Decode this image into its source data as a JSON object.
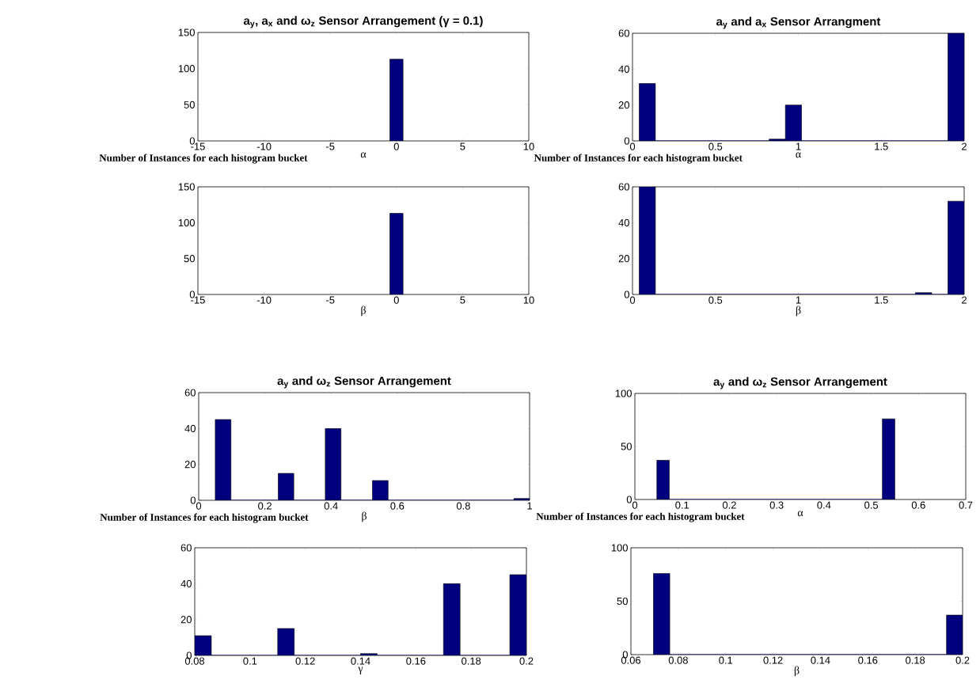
{
  "chart_data": [
    {
      "type": "histogram",
      "title": "a$_{y}$, a$_{x}$ and ω$_{z}$ Sensor Arrangement (γ = 0.1)",
      "xlabel": "α",
      "ylabel": "Number of Instances for each histogram bucket",
      "bins": [
        -0.5,
        0.5
      ],
      "values": [
        113
      ],
      "color": "#00007f",
      "xlim": [
        -15,
        10
      ],
      "ylim": [
        0,
        150
      ],
      "xticks": [
        -15,
        -10,
        -5,
        0,
        5,
        10
      ],
      "yticks": [
        0,
        50,
        100,
        150
      ]
    },
    {
      "type": "histogram",
      "title": "a$_{y}$ and a$_{x}$ Sensor Arrangment",
      "xlabel": "α",
      "ylabel": "Number of Instances for each histogram bucket",
      "bins": [
        0.04,
        0.138,
        0.236,
        0.334,
        0.432,
        0.53,
        0.628,
        0.726,
        0.824,
        0.922,
        1.02,
        1.118,
        1.216,
        1.314,
        1.412,
        1.51,
        1.608,
        1.706,
        1.804,
        1.902,
        2.0
      ],
      "values": [
        32,
        0,
        0,
        0,
        0,
        0,
        0,
        0,
        1,
        20,
        0,
        0,
        0,
        0,
        0,
        0,
        0,
        0,
        0,
        60
      ],
      "color": "#00007f",
      "xlim": [
        0,
        2
      ],
      "ylim": [
        0,
        60
      ],
      "xticks": [
        0,
        0.5,
        1,
        1.5,
        2
      ],
      "yticks": [
        0,
        20,
        40,
        60
      ]
    },
    {
      "type": "histogram",
      "xlabel": "β",
      "bins": [
        -0.5,
        0.5
      ],
      "values": [
        113
      ],
      "color": "#00007f",
      "xlim": [
        -15,
        10
      ],
      "ylim": [
        0,
        150
      ],
      "xticks": [
        -15,
        -10,
        -5,
        0,
        5,
        10
      ],
      "yticks": [
        0,
        50,
        100,
        150
      ]
    },
    {
      "type": "histogram",
      "xlabel": "β",
      "bins": [
        0.04,
        0.138,
        0.236,
        0.334,
        0.432,
        0.53,
        0.628,
        0.726,
        0.824,
        0.922,
        1.02,
        1.118,
        1.216,
        1.314,
        1.412,
        1.51,
        1.608,
        1.706,
        1.804,
        1.902,
        2.0
      ],
      "values": [
        60,
        0,
        0,
        0,
        0,
        0,
        0,
        0,
        0,
        0,
        0,
        0,
        0,
        0,
        0,
        0,
        0,
        1,
        0,
        52
      ],
      "color": "#00007f",
      "xlim": [
        0,
        2
      ],
      "ylim": [
        0,
        60
      ],
      "xticks": [
        0,
        0.5,
        1,
        1.5,
        2
      ],
      "yticks": [
        0,
        20,
        40,
        60
      ]
    },
    {
      "type": "histogram",
      "title": "a$_{y}$ and ω$_{z}$ Sensor Arrangement",
      "xlabel": "β",
      "ylabel": "Number of Instances for each histogram bucket",
      "bins": [
        0.05,
        0.0975,
        0.145,
        0.1925,
        0.24,
        0.2875,
        0.335,
        0.3825,
        0.43,
        0.4775,
        0.525,
        0.5725,
        0.62,
        0.6675,
        0.715,
        0.7625,
        0.81,
        0.8575,
        0.905,
        0.9525,
        1.0
      ],
      "values": [
        45,
        0,
        0,
        0,
        15,
        0,
        0,
        40,
        0,
        0,
        11,
        0,
        0,
        0,
        0,
        0,
        0,
        0,
        0,
        1
      ],
      "color": "#00007f",
      "xlim": [
        0,
        1
      ],
      "ylim": [
        0,
        60
      ],
      "xticks": [
        0,
        0.2,
        0.4,
        0.6,
        0.8,
        1
      ],
      "yticks": [
        0,
        20,
        40,
        60
      ]
    },
    {
      "type": "histogram",
      "title": "a$_{y}$ and ω$_{z}$ Sensor Arrangement",
      "xlabel": "α",
      "ylabel": "Number of Instances for each histogram bucket",
      "bins": [
        0.0465,
        0.073,
        0.0995,
        0.126,
        0.1525,
        0.179,
        0.2055,
        0.232,
        0.2585,
        0.285,
        0.3115,
        0.338,
        0.3645,
        0.391,
        0.4175,
        0.444,
        0.4705,
        0.497,
        0.5235,
        0.55
      ],
      "values": [
        37,
        0,
        0,
        0,
        0,
        0,
        0,
        0,
        0,
        0,
        0,
        0,
        0,
        0,
        0,
        0,
        0,
        0,
        76
      ],
      "color": "#00007f",
      "xlim": [
        0,
        0.7
      ],
      "ylim": [
        0,
        100
      ],
      "xticks": [
        0,
        0.1,
        0.2,
        0.3,
        0.4,
        0.5,
        0.6,
        0.7
      ],
      "yticks": [
        0,
        50,
        100
      ]
    },
    {
      "type": "histogram",
      "xlabel": "γ",
      "bins": [
        0.08,
        0.086,
        0.092,
        0.098,
        0.104,
        0.11,
        0.116,
        0.122,
        0.128,
        0.134,
        0.14,
        0.146,
        0.152,
        0.158,
        0.164,
        0.17,
        0.176,
        0.182,
        0.188,
        0.194,
        0.2
      ],
      "values": [
        11,
        0,
        0,
        0,
        0,
        15,
        0,
        0,
        0,
        0,
        1,
        0,
        0,
        0,
        0,
        40,
        0,
        0,
        0,
        45
      ],
      "color": "#00007f",
      "xlim": [
        0.08,
        0.2
      ],
      "ylim": [
        0,
        60
      ],
      "xticks": [
        0.08,
        0.1,
        0.12,
        0.14,
        0.16,
        0.18,
        0.2
      ],
      "yticks": [
        0,
        20,
        40,
        60
      ]
    },
    {
      "type": "histogram",
      "xlabel": "β",
      "bins": [
        0.0695,
        0.0764,
        0.0832,
        0.0901,
        0.097,
        0.1039,
        0.1107,
        0.1176,
        0.1245,
        0.1313,
        0.1382,
        0.1451,
        0.1519,
        0.1588,
        0.1657,
        0.1726,
        0.1794,
        0.1863,
        0.1932,
        0.2
      ],
      "values": [
        76,
        0,
        0,
        0,
        0,
        0,
        0,
        0,
        0,
        0,
        0,
        0,
        0,
        0,
        0,
        0,
        0,
        0,
        37
      ],
      "color": "#00007f",
      "xlim": [
        0.06,
        0.2
      ],
      "ylim": [
        0,
        100
      ],
      "xticks": [
        0.06,
        0.08,
        0.1,
        0.12,
        0.14,
        0.16,
        0.18,
        0.2
      ],
      "yticks": [
        0,
        50,
        100
      ]
    }
  ]
}
